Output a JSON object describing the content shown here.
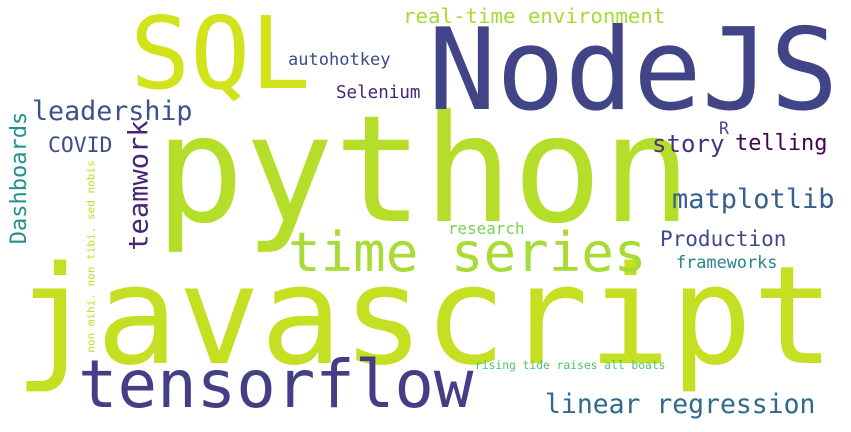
{
  "words": [
    {
      "key": "javascript",
      "text": "javascript",
      "color": "#c5df22"
    },
    {
      "key": "python",
      "text": "python",
      "color": "#b5de2b"
    },
    {
      "key": "nodejs",
      "text": "NodeJS",
      "color": "#414487"
    },
    {
      "key": "sql",
      "text": "SQL",
      "color": "#d2e21b"
    },
    {
      "key": "tensorflow",
      "text": "tensorflow",
      "color": "#433e85"
    },
    {
      "key": "time_series",
      "text": "time series",
      "color": "#a8db34"
    },
    {
      "key": "leadership",
      "text": "leadership",
      "color": "#3b528b"
    },
    {
      "key": "teamwork",
      "text": "teamwork",
      "color": "#482475"
    },
    {
      "key": "linear_regression",
      "text": "linear regression",
      "color": "#31688e"
    },
    {
      "key": "matplotlib",
      "text": "matplotlib",
      "color": "#355f8d"
    },
    {
      "key": "story",
      "text": "story",
      "color": "#46327e"
    },
    {
      "key": "telling",
      "text": "telling",
      "color": "#440154"
    },
    {
      "key": "real_time_environment",
      "text": "real-time environment",
      "color": "#a5db36"
    },
    {
      "key": "production",
      "text": "Production",
      "color": "#3e4989"
    },
    {
      "key": "dashboards",
      "text": "Dashboards",
      "color": "#21918c"
    },
    {
      "key": "covid",
      "text": "COVID",
      "color": "#3e4a89"
    },
    {
      "key": "autohotkey",
      "text": "autohotkey",
      "color": "#3e4989"
    },
    {
      "key": "selenium",
      "text": "Selenium",
      "color": "#482677"
    },
    {
      "key": "frameworks",
      "text": "frameworks",
      "color": "#25858e"
    },
    {
      "key": "research",
      "text": "research",
      "color": "#7ad151"
    },
    {
      "key": "r",
      "text": "R",
      "color": "#3e4989"
    },
    {
      "key": "non_mihi",
      "text": "non mihi. non tibi. sed nobis",
      "color": "#bddf26"
    },
    {
      "key": "rising_tide",
      "text": "rising tide raises all boats",
      "color": "#4ec36b"
    }
  ]
}
